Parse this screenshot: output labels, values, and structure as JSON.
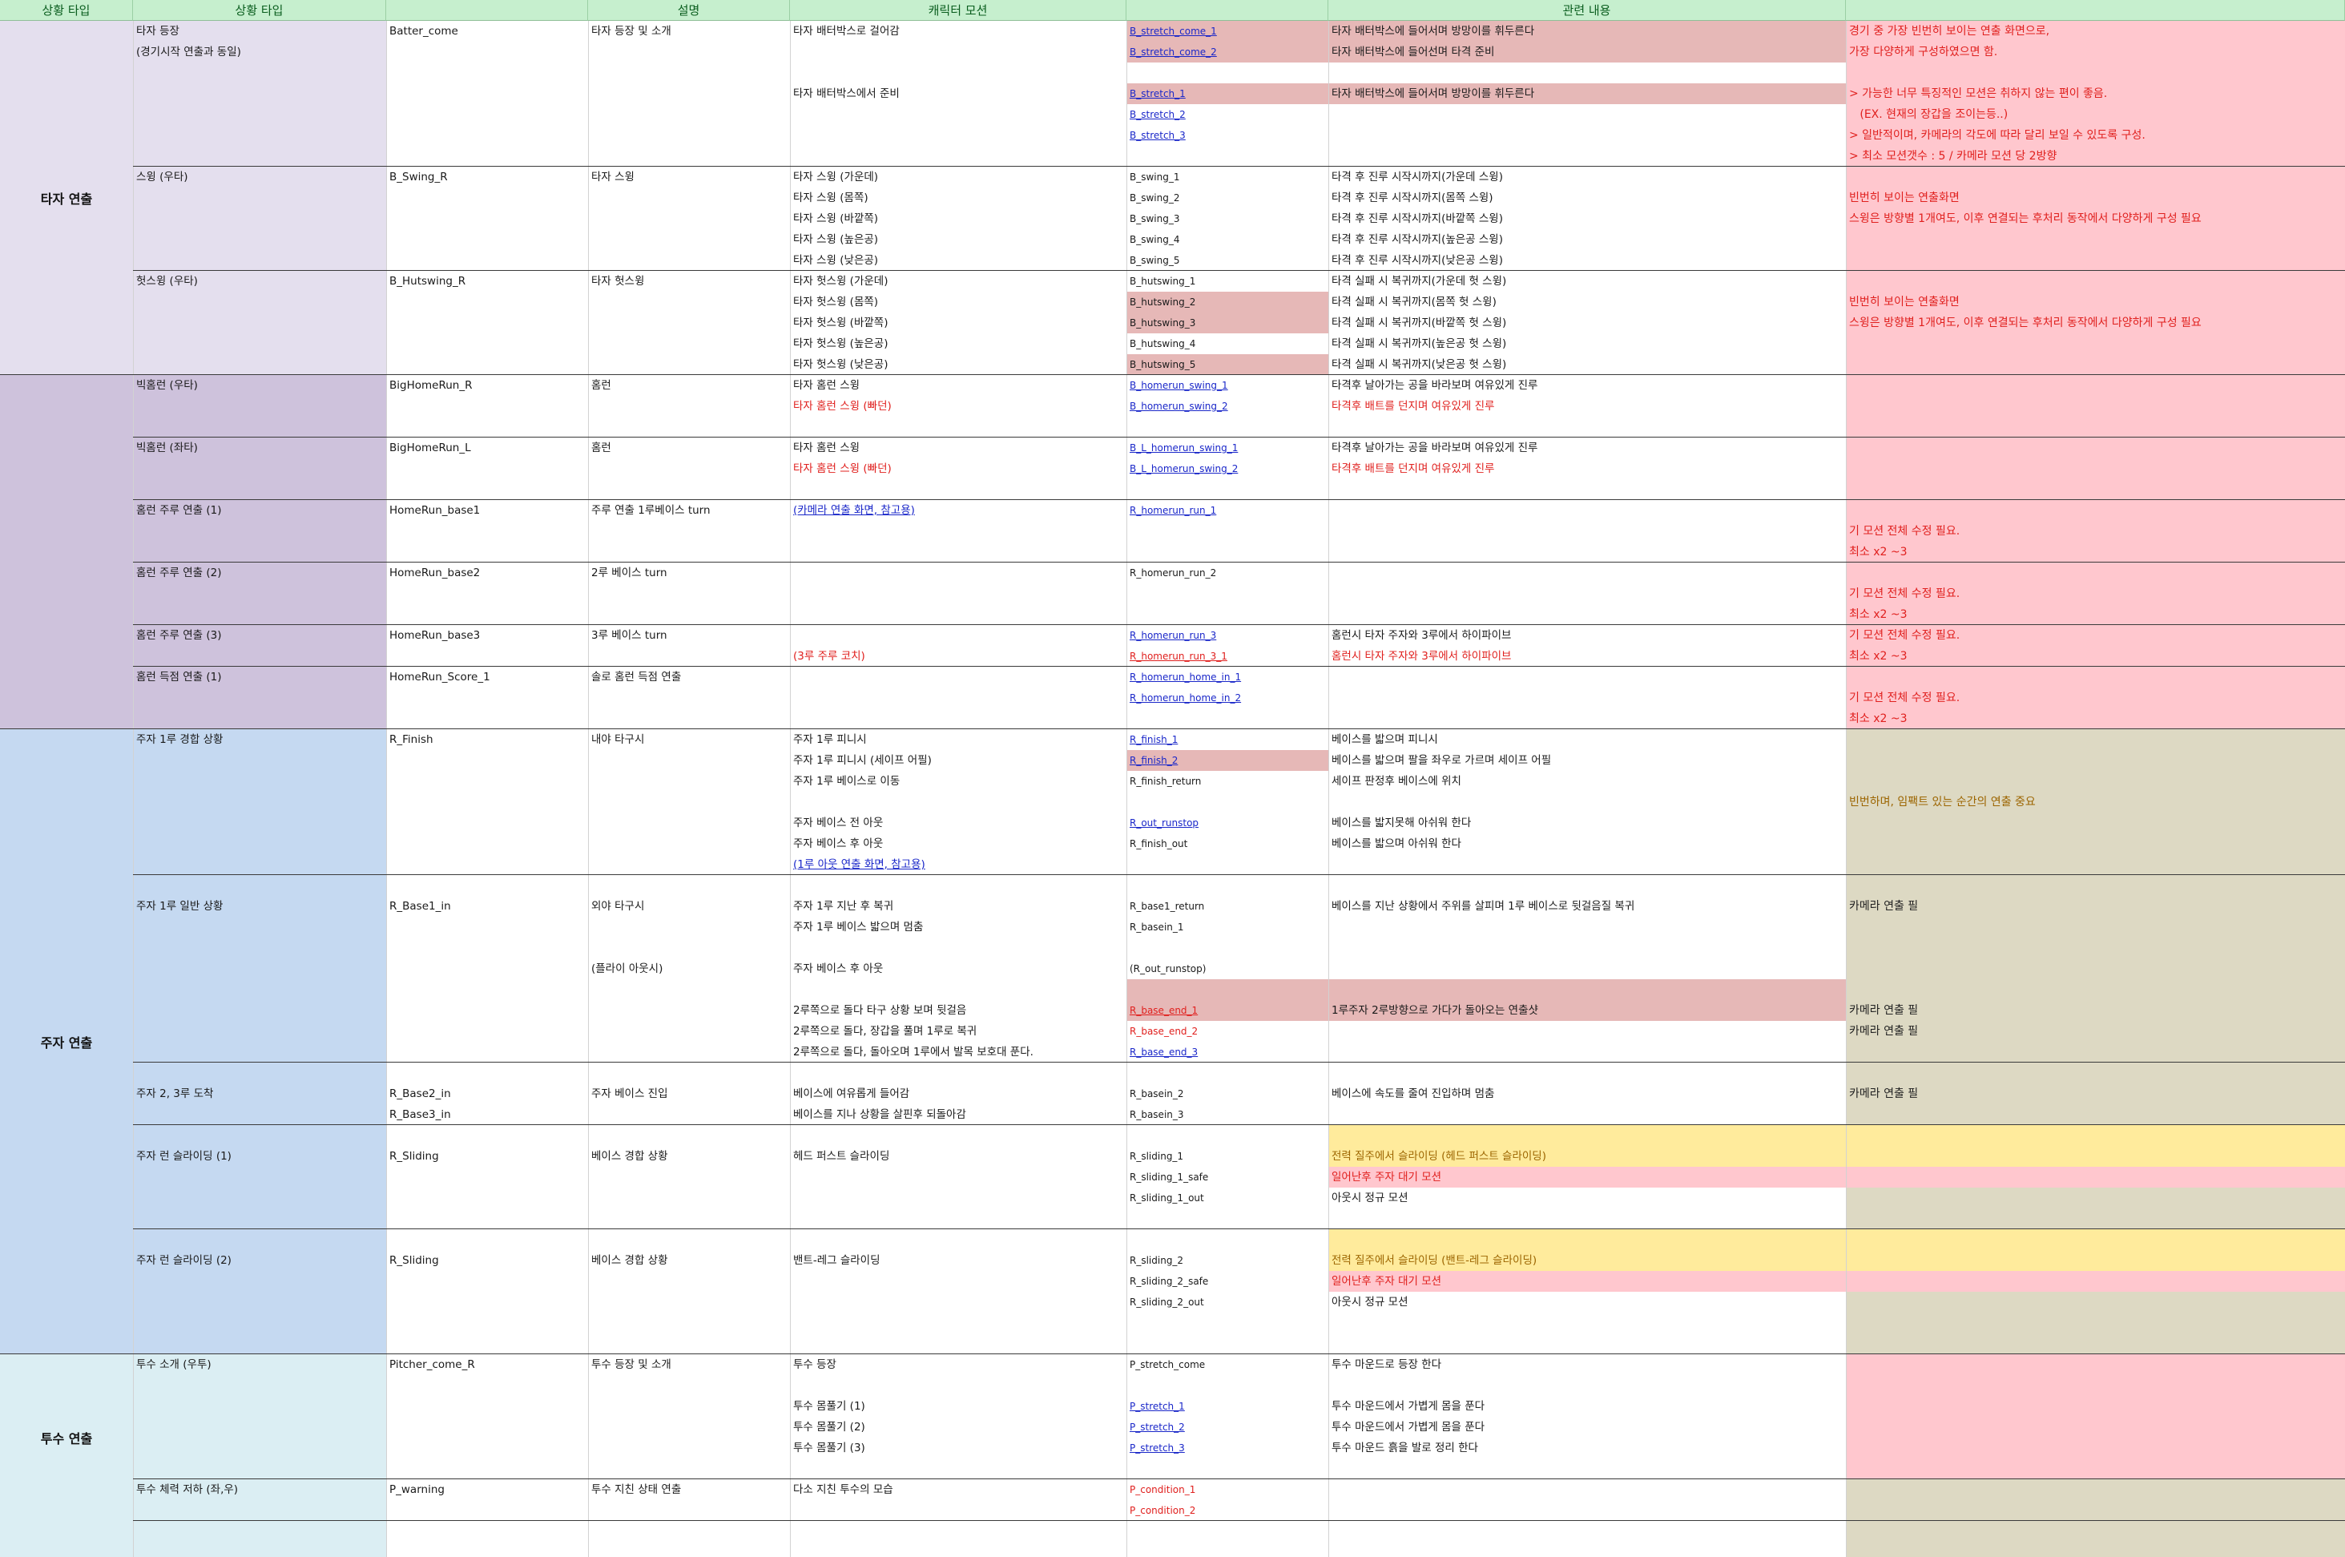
{
  "headers": [
    "상황 타입",
    "상황 타입",
    "설명",
    "캐릭터 모션",
    "",
    "관련 내용",
    ""
  ],
  "groups": {
    "batter": "타자 연출",
    "runner": "주자 연출",
    "pitcher": "투수 연출"
  },
  "colors": {
    "header_bg": "#c6efce",
    "header_text": "#0b5e1f",
    "group_batter": "#e4dfee",
    "group_homerun": "#cec2dc",
    "group_runner": "#c5d9f1",
    "group_pitcher": "#dbeef3",
    "motion_highlight": "#e6b8b7",
    "note_pink": "#ffc7ce",
    "note_tan": "#ddd9c3",
    "yellow": "#ffeb9c",
    "link_blue": "#1a27c9",
    "text_red": "#e0201e",
    "text_olive": "#9c6500"
  },
  "rows": [
    {
      "type": "타자 등장",
      "id": "Batter_come",
      "desc": "타자 등장 및 소개",
      "motion": "타자 배터박스로 걸어감",
      "clip": "B_stretch_come_1",
      "related": "타자 배터박스에 들어서며 방망이를 휘두른다"
    },
    {
      "type": "(경기시작 연출과 동일)",
      "clip": "B_stretch_come_2",
      "related": "타자 배터박스에 들어선며 타격 준비"
    },
    {},
    {
      "motion": "타자 배터박스에서 준비",
      "clip": "B_stretch_1",
      "related": "타자 배터박스에 들어서며 방망이를 휘두른다"
    },
    {
      "clip": "B_stretch_2"
    },
    {
      "clip": "B_stretch_3"
    },
    {},
    {
      "type": "스윙 (우타)",
      "id": "B_Swing_R",
      "desc": "타자 스윙",
      "motion": "타자 스윙 (가운데)",
      "clip": "B_swing_1",
      "related": "타격 후 진루 시작시까지(가운데 스윙)"
    },
    {
      "motion": "타자 스윙 (몸쪽)",
      "clip": "B_swing_2",
      "related": "타격 후 진루 시작시까지(몸쪽 스윙)"
    },
    {
      "motion": "타자 스윙 (바깥쪽)",
      "clip": "B_swing_3",
      "related": "타격 후 진루 시작시까지(바깥쪽 스윙)"
    },
    {
      "motion": "타자 스윙 (높은공)",
      "clip": "B_swing_4",
      "related": "타격 후 진루 시작시까지(높은공 스윙)"
    },
    {
      "motion": "타자 스윙 (낮은공)",
      "clip": "B_swing_5",
      "related": "타격 후 진루 시작시까지(낮은공 스윙)"
    },
    {
      "type": "헛스윙 (우타)",
      "id": "B_Hutswing_R",
      "desc": "타자 헛스윙",
      "motion": "타자 헛스윙 (가운데)",
      "clip": "B_hutswing_1",
      "related": "타격 실패 시 복귀까지(가운데 헛 스윙)"
    },
    {
      "motion": "타자 헛스윙 (몸쪽)",
      "clip": "B_hutswing_2",
      "related": "타격 실패 시 복귀까지(몸쪽 헛 스윙)"
    },
    {
      "motion": "타자 헛스윙 (바깥쪽)",
      "clip": "B_hutswing_3",
      "related": "타격 실패 시 복귀까지(바깥쪽 헛 스윙)"
    },
    {
      "motion": "타자 헛스윙 (높은공)",
      "clip": "B_hutswing_4",
      "related": "타격 실패 시 복귀까지(높은공 헛 스윙)"
    },
    {
      "motion": "타자 헛스윙 (낮은공)",
      "clip": "B_hutswing_5",
      "related": "타격 실패 시 복귀까지(낮은공 헛 스윙)"
    },
    {
      "type": "빅홈런 (우타)",
      "id": "BigHomeRun_R",
      "desc": "홈런",
      "motion": "타자 홈런 스윙",
      "clip": "B_homerun_swing_1",
      "related": "타격후 날아가는 공을 바라보며 여유있게 진루"
    },
    {
      "motion": "타자 홈런 스윙 (빠던)",
      "clip": "B_homerun_swing_2",
      "related": "타격후 배트를 던지며 여유있게 진루"
    },
    {},
    {
      "type": "빅홈런 (좌타)",
      "id": "BigHomeRun_L",
      "desc": "홈런",
      "motion": "타자 홈런 스윙",
      "clip": "B_L_homerun_swing_1",
      "related": "타격후 날아가는 공을 바라보며 여유있게 진루"
    },
    {
      "motion": "타자 홈런 스윙 (빠던)",
      "clip": "B_L_homerun_swing_2",
      "related": "타격후 배트를 던지며 여유있게 진루"
    },
    {},
    {
      "type": "홈런 주루 연출 (1)",
      "id": "HomeRun_base1",
      "desc": "주루 연출 1루베이스 turn",
      "motion": "(카메라 연출 화면, 참고용)",
      "clip": "R_homerun_run_1"
    },
    {},
    {},
    {
      "type": "홈런 주루 연출 (2)",
      "id": "HomeRun_base2",
      "desc": "2루 베이스 turn",
      "clip": "R_homerun_run_2"
    },
    {},
    {},
    {
      "type": "홈런 주루 연출 (3)",
      "id": "HomeRun_base3",
      "desc": "3루 베이스 turn",
      "clip": "R_homerun_run_3",
      "related": "홈런시 타자 주자와 3루에서 하이파이브"
    },
    {
      "motion": "(3루 주루 코치)",
      "clip": "R_homerun_run_3_1",
      "related": "홈런시 타자 주자와 3루에서 하이파이브"
    },
    {
      "type": "홈런 득점 연출 (1)",
      "id": "HomeRun_Score_1",
      "desc": "솔로 홈런 득점 연출",
      "clip": "R_homerun_home_in_1"
    },
    {
      "clip": "R_homerun_home_in_2"
    },
    {},
    {
      "type": "주자 1루 경합 상황",
      "id": "R_Finish",
      "desc": "내야 타구시",
      "motion": "주자 1루 피니시",
      "clip": "R_finish_1",
      "related": "베이스를 밟으며 피니시"
    },
    {
      "motion": "주자 1루 피니시 (세이프 어필)",
      "clip": "R_finish_2",
      "related": "베이스를 밟으며 팔을 좌우로 가르며 세이프 어필"
    },
    {
      "motion": "주자 1루 베이스로 이동",
      "clip": "R_finish_return",
      "related": "세이프 판정후 베이스에 위치"
    },
    {},
    {
      "motion": "주자 베이스 전 아웃",
      "clip": "R_out_runstop",
      "related": "베이스를 밟지못해 아쉬워 한다"
    },
    {
      "motion": "주자 베이스 후 아웃",
      "clip": "R_finish_out",
      "related": "베이스를 밟으며 아쉬워 한다"
    },
    {
      "motion": "(1루 아웃 연출 화면, 참고용)"
    },
    {},
    {
      "type": "주자 1루 일반 상황",
      "id": "R_Base1_in",
      "desc": "외야 타구시",
      "motion": "주자 1루 지난 후 복귀",
      "clip": "R_base1_return",
      "related": "베이스를 지난 상황에서 주위를 살피며 1루 베이스로 뒷걸음질 복귀"
    },
    {
      "motion": "주자 1루 베이스 밟으며 멈춤",
      "clip": "R_basein_1"
    },
    {},
    {
      "desc": "(플라이 아웃시)",
      "motion": "주자 베이스 후 아웃",
      "clip": "(R_out_runstop)"
    },
    {},
    {
      "motion": "2루쪽으로 돌다 타구 상황 보며 뒷걸음",
      "clip": "R_base_end_1",
      "related": "1루주자 2루방향으로 가다가 돌아오는 연출샷"
    },
    {
      "motion": "2루쪽으로 돌다, 장갑을 풀며 1루로 복귀",
      "clip": "R_base_end_2"
    },
    {
      "motion": "2루쪽으로 돌다, 돌아오며 1루에서 발목 보호대 푼다.",
      "clip": "R_base_end_3"
    },
    {},
    {
      "type": "주자 2, 3루 도착",
      "id": "R_Base2_in",
      "desc": "주자 베이스 진입",
      "motion": "베이스에 여유롭게 들어감",
      "clip": "R_basein_2",
      "related": "베이스에 속도를 줄여 진입하며 멈춤"
    },
    {
      "id": "R_Base3_in",
      "motion": "베이스를 지나 상황을 살핀후 되돌아감",
      "clip": "R_basein_3"
    },
    {},
    {
      "type": "주자 런 슬라이딩 (1)",
      "id": "R_Sliding",
      "desc": "베이스 경합 상황",
      "motion": "헤드 퍼스트 슬라이딩",
      "clip": "R_sliding_1",
      "related": "전력 질주에서 슬라이딩 (헤드 퍼스트 슬라이딩)"
    },
    {
      "clip": "R_sliding_1_safe",
      "related": "일어난후 주자 대기 모션"
    },
    {
      "clip": "R_sliding_1_out",
      "related": "아웃시 정규 모션"
    },
    {},
    {},
    {
      "type": "주자 런 슬라이딩 (2)",
      "id": "R_Sliding",
      "desc": "베이스 경합 상황",
      "motion": "밴트-레그 슬라이딩",
      "clip": "R_sliding_2",
      "related": "전력 질주에서 슬라이딩 (밴트-레그 슬라이딩)"
    },
    {
      "clip": "R_sliding_2_safe",
      "related": "일어난후 주자 대기 모션"
    },
    {
      "clip": "R_sliding_2_out",
      "related": "아웃시 정규 모션"
    },
    {},
    {},
    {
      "type": "투수 소개 (우투)",
      "id": "Pitcher_come_R",
      "desc": "투수 등장 및 소개",
      "motion": "투수 등장",
      "clip": "P_stretch_come",
      "related": "투수 마운드로 등장 한다"
    },
    {},
    {
      "motion": "투수 몸풀기 (1)",
      "clip": "P_stretch_1",
      "related": "투수 마운드에서 가볍게 몸을 푼다"
    },
    {
      "motion": "투수 몸풀기 (2)",
      "clip": "P_stretch_2",
      "related": "투수 마운드에서 가볍게 몸을 푼다"
    },
    {
      "motion": "투수 몸풀기 (3)",
      "clip": "P_stretch_3",
      "related": "투수 마운드 흙을 발로 정리 한다"
    },
    {},
    {
      "type": "투수 체력 저하 (좌,우)",
      "id": "P_warning",
      "desc": "투수 지친 상태 연출",
      "motion": "다소 지친 투수의 모습",
      "clip": "P_condition_1"
    },
    {
      "clip": "P_condition_2"
    }
  ],
  "notes": {
    "batter_intro": [
      "경기 중 가장 빈번히 보이는 연출 화면으로,",
      "가장 다양하게 구성하였으면 함.",
      "",
      "> 가능한 너무 특징적인 모션은 취하지 않는 편이 좋음.",
      "   (EX. 현재의 장갑을 조이는등..)",
      "> 일반적이며, 카메라의 각도에 따라 달리 보일 수 있도록 구성.",
      "> 최소 모션갯수 : 5 / 카메라 모션 당 2방향"
    ],
    "swing": [
      "빈번히 보이는 연출화면",
      "스윙은 방향별 1개여도, 이후 연결되는 후처리 동작에서 다양하게 구성 필요"
    ],
    "hutswing": [
      "빈번히 보이는 연출화면",
      "스윙은 방향별 1개여도, 이후 연결되는 후처리 동작에서 다양하게 구성 필요"
    ],
    "homerun_1": [
      "기 모션 전체 수정 필요.",
      "최소 x2 ~3"
    ],
    "homerun_2": [
      "기 모션 전체 수정 필요.",
      "최소 x2 ~3"
    ],
    "homerun_3": [
      "기 모션 전체 수정 필요.",
      "최소 x2 ~3"
    ],
    "homerun_score": [
      "기 모션 전체 수정 필요.",
      "최소 x2 ~3"
    ],
    "finish": "빈번하며, 임팩트 있는 순간의 연출 중요",
    "camera": "카메라 연출 필"
  }
}
